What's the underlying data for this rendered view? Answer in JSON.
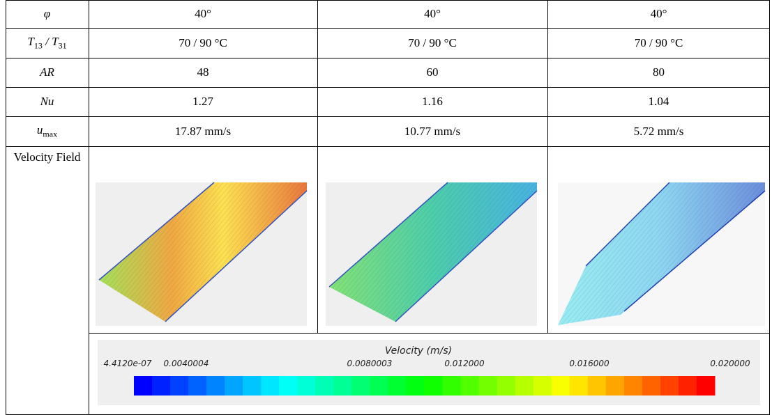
{
  "table": {
    "rows": [
      {
        "label": [
          {
            "text": "φ"
          }
        ],
        "cells": [
          "40°",
          "40°",
          "40°"
        ]
      },
      {
        "label": [
          {
            "text": "T",
            "sub": "13"
          },
          {
            "text": " / "
          },
          {
            "text": "T",
            "sub": "31"
          }
        ],
        "cells": [
          "70 / 90 °C",
          "70 / 90 °C",
          "70 / 90 °C"
        ]
      },
      {
        "label": [
          {
            "text": "AR"
          }
        ],
        "cells": [
          "48",
          "60",
          "80"
        ]
      },
      {
        "label": [
          {
            "text": "Nu"
          }
        ],
        "cells": [
          "1.27",
          "1.16",
          "1.04"
        ]
      },
      {
        "label": [
          {
            "text": "u",
            "sub": "max"
          }
        ],
        "cells": [
          "17.87 mm/s",
          "10.77 mm/s",
          "5.72 mm/s"
        ]
      },
      {
        "label": [
          {
            "text": "Velocity Field"
          }
        ]
      }
    ]
  },
  "colorbar": {
    "title": "Velocity (m/s)",
    "ticks": [
      "4.4120e-07",
      "0.0040004",
      "0.0080003",
      "0.012000",
      "0.016000",
      "0.020000"
    ]
  }
}
